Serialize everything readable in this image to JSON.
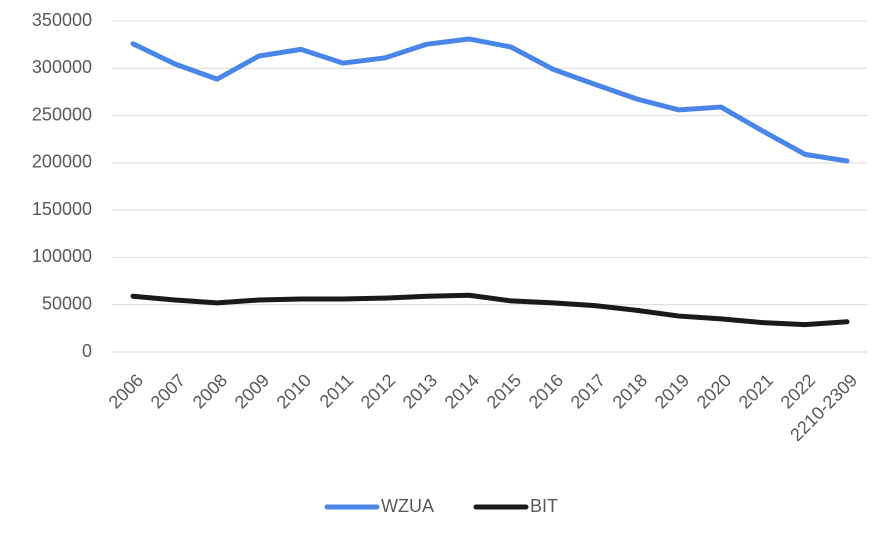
{
  "chart_data": {
    "type": "line",
    "categories": [
      "2006",
      "2007",
      "2008",
      "2009",
      "2010",
      "2011",
      "2012",
      "2013",
      "2014",
      "2015",
      "2016",
      "2017",
      "2018",
      "2019",
      "2020",
      "2021",
      "2022",
      "2210-2309"
    ],
    "series": [
      {
        "name": "WZUA",
        "color": "#4a86e8",
        "values": [
          326000,
          304500,
          288500,
          313000,
          320000,
          305500,
          311000,
          325500,
          331000,
          322500,
          299000,
          283000,
          267500,
          256000,
          259000,
          233500,
          209000,
          202000
        ]
      },
      {
        "name": "BIT",
        "color": "#1a1a1a",
        "values": [
          59000,
          55000,
          52000,
          55000,
          56000,
          56000,
          57000,
          59000,
          60000,
          54000,
          52000,
          49000,
          44000,
          38000,
          35000,
          31000,
          29000,
          32000
        ]
      }
    ],
    "ylim": [
      0,
      350000
    ],
    "yticks": [
      0,
      50000,
      100000,
      150000,
      200000,
      250000,
      300000,
      350000
    ],
    "grid": true,
    "legend": "bottom"
  }
}
